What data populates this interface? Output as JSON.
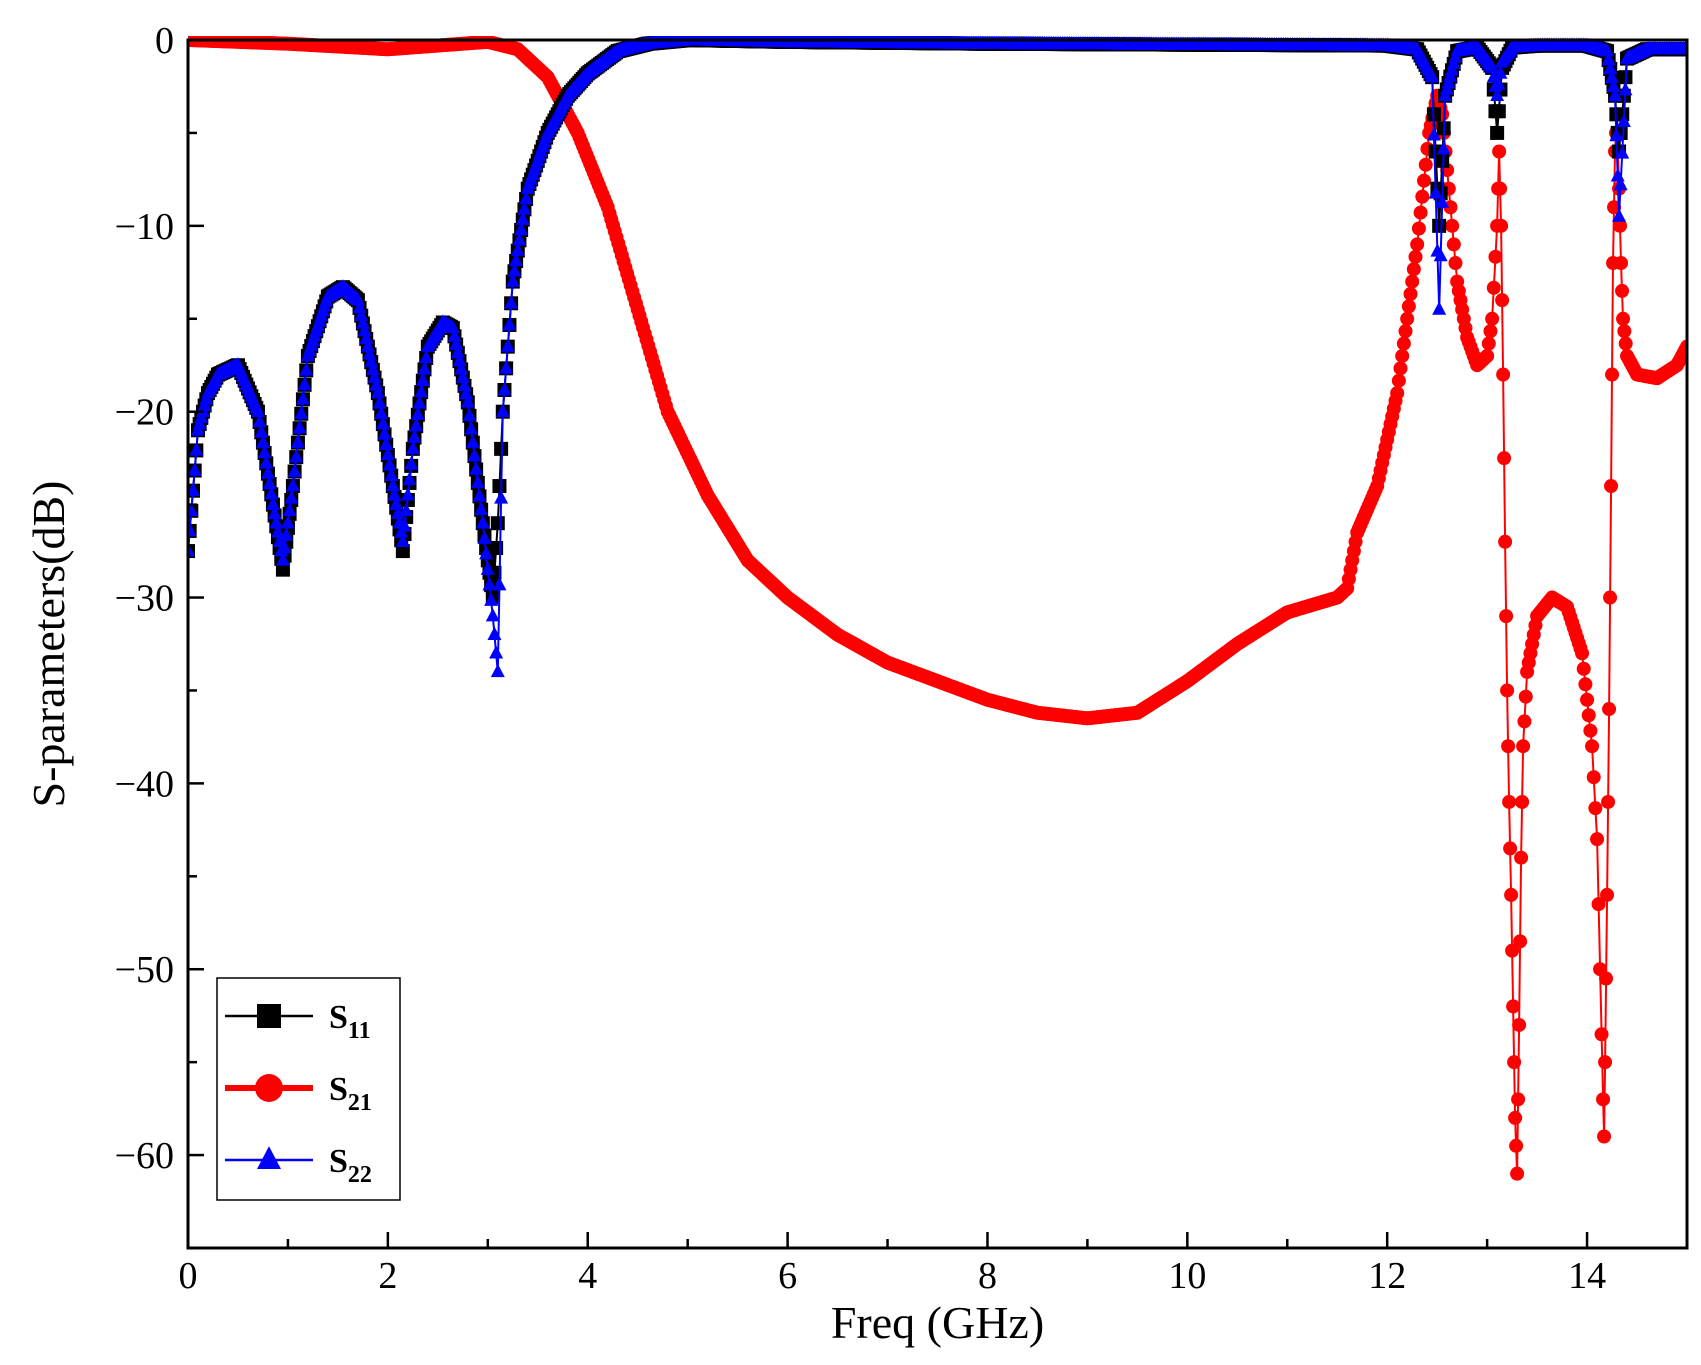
{
  "chart_data": {
    "type": "line",
    "title": "",
    "xlabel": "Freq (GHz)",
    "ylabel": "S-parameters(dB)",
    "xlim": [
      0,
      15
    ],
    "ylim": [
      -65,
      0
    ],
    "x_ticks": [
      0,
      2,
      4,
      6,
      8,
      10,
      12,
      14
    ],
    "x_tick_labels": [
      "0",
      "2",
      "4",
      "6",
      "8",
      "10",
      "12",
      "14"
    ],
    "y_ticks": [
      0,
      -10,
      -20,
      -30,
      -40,
      -50,
      -60
    ],
    "y_tick_labels": [
      "0",
      "−10",
      "−20",
      "−30",
      "−40",
      "−50",
      "−60"
    ],
    "grid": false,
    "legend_position": "bottom-left",
    "series": [
      {
        "name": "S11",
        "legend_main": "S",
        "legend_sub": "11",
        "color": "#000000",
        "marker": "square",
        "x": [
          0,
          0.1,
          0.2,
          0.3,
          0.5,
          0.7,
          0.85,
          0.95,
          1.05,
          1.2,
          1.4,
          1.55,
          1.7,
          1.9,
          2.05,
          2.15,
          2.25,
          2.4,
          2.55,
          2.65,
          2.8,
          2.95,
          3.05,
          3.1,
          3.15,
          3.25,
          3.4,
          3.6,
          3.8,
          4.0,
          4.3,
          4.6,
          5.0,
          6.0,
          8.0,
          10.0,
          12.0,
          12.3,
          12.45,
          12.52,
          12.58,
          12.7,
          12.9,
          13.05,
          13.1,
          13.15,
          13.25,
          13.5,
          14.0,
          14.2,
          14.28,
          14.32,
          14.4,
          14.6,
          15.0
        ],
        "values": [
          -27.5,
          -21,
          -19,
          -18,
          -17.5,
          -20,
          -25,
          -28.5,
          -24,
          -17,
          -13.8,
          -13.3,
          -14,
          -19,
          -24,
          -27.5,
          -22,
          -16.5,
          -15.2,
          -15.5,
          -19.5,
          -26,
          -30,
          -26,
          -20,
          -13,
          -8,
          -5,
          -3,
          -1.8,
          -0.6,
          -0.2,
          0,
          -0.1,
          -0.2,
          -0.25,
          -0.3,
          -0.5,
          -2,
          -10,
          -3,
          -0.6,
          -0.4,
          -1.5,
          -5,
          -1.5,
          -0.4,
          -0.3,
          -0.3,
          -0.6,
          -3,
          -6,
          -1,
          -0.5,
          -0.5
        ]
      },
      {
        "name": "S21",
        "legend_main": "S",
        "legend_sub": "21",
        "color": "#ff0000",
        "marker": "circle",
        "x": [
          0,
          1,
          2,
          3,
          3.3,
          3.6,
          3.9,
          4.2,
          4.5,
          4.8,
          5.2,
          5.6,
          6.0,
          6.5,
          7.0,
          7.5,
          8.0,
          8.5,
          9.0,
          9.5,
          10.0,
          10.5,
          11.0,
          11.5,
          11.6,
          11.7,
          11.9,
          12.1,
          12.3,
          12.42,
          12.5,
          12.55,
          12.6,
          12.7,
          12.8,
          12.9,
          13.0,
          13.05,
          13.1,
          13.12,
          13.14,
          13.16,
          13.18,
          13.2,
          13.22,
          13.24,
          13.26,
          13.28,
          13.3,
          13.32,
          13.34,
          13.36,
          13.4,
          13.5,
          13.65,
          13.8,
          13.95,
          14.05,
          14.1,
          14.13,
          14.16,
          14.17,
          14.18,
          14.2,
          14.22,
          14.24,
          14.26,
          14.28,
          14.3,
          14.32,
          14.34,
          14.36,
          14.4,
          14.5,
          14.7,
          14.9,
          15.0
        ],
        "values": [
          0,
          -0.2,
          -0.5,
          -0.1,
          -0.5,
          -2,
          -5,
          -9,
          -14.5,
          -20,
          -24.5,
          -28,
          -30,
          -32,
          -33.5,
          -34.5,
          -35.5,
          -36.2,
          -36.5,
          -36.2,
          -34.5,
          -32.5,
          -30.8,
          -30,
          -29.5,
          -26.5,
          -24,
          -19,
          -11,
          -5,
          -3,
          -4,
          -7,
          -13,
          -16,
          -17.5,
          -17,
          -15,
          -10,
          -6,
          -10,
          -18,
          -27,
          -35,
          -41,
          -46,
          -52,
          -58,
          -61,
          -53,
          -44,
          -38,
          -34,
          -31,
          -30,
          -30.5,
          -33,
          -38,
          -43,
          -50,
          -57,
          -59,
          -55,
          -46,
          -36,
          -24,
          -12,
          -6,
          -4,
          -8,
          -12,
          -15,
          -17,
          -18,
          -18.2,
          -17.5,
          -16.5
        ]
      },
      {
        "name": "S22",
        "legend_main": "S",
        "legend_sub": "22",
        "color": "#0000ff",
        "marker": "triangle",
        "x": [
          0,
          0.1,
          0.2,
          0.3,
          0.5,
          0.7,
          0.85,
          0.95,
          1.05,
          1.2,
          1.4,
          1.55,
          1.7,
          1.9,
          2.05,
          2.15,
          2.25,
          2.4,
          2.55,
          2.65,
          2.8,
          2.95,
          3.05,
          3.1,
          3.15,
          3.25,
          3.4,
          3.6,
          3.8,
          4.0,
          4.3,
          4.6,
          5.0,
          6.0,
          8.0,
          10.0,
          12.0,
          12.3,
          12.45,
          12.52,
          12.58,
          12.7,
          12.9,
          13.05,
          13.1,
          13.15,
          13.25,
          13.5,
          14.0,
          14.2,
          14.28,
          14.32,
          14.4,
          14.6,
          15.0
        ],
        "values": [
          -27.5,
          -21,
          -19,
          -18,
          -17.5,
          -20,
          -25,
          -28,
          -24,
          -17,
          -13.8,
          -13.3,
          -14,
          -19,
          -24,
          -27,
          -22,
          -16.5,
          -15.2,
          -15.5,
          -19.5,
          -26,
          -31,
          -34,
          -20,
          -13,
          -8,
          -5,
          -3,
          -1.8,
          -0.6,
          -0.2,
          0,
          -0.1,
          -0.2,
          -0.25,
          -0.3,
          -0.5,
          -2,
          -14.5,
          -3,
          -0.6,
          -0.4,
          -1.5,
          -3,
          -1.2,
          -0.4,
          -0.3,
          -0.3,
          -0.6,
          -3,
          -9.5,
          -1,
          -0.5,
          -0.5
        ]
      }
    ]
  }
}
